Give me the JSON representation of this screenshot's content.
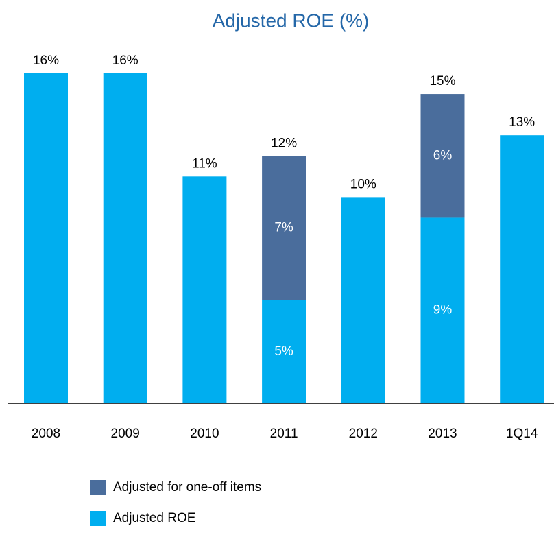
{
  "chart_data": {
    "type": "stacked-bar",
    "title": "Adjusted ROE (%)",
    "categories": [
      "2008",
      "2009",
      "2010",
      "2011",
      "2012",
      "2013",
      "1Q14"
    ],
    "series": [
      {
        "name": "Adjusted ROE",
        "color": "#00aeef",
        "values": [
          16,
          16,
          11,
          5,
          10,
          9,
          13
        ],
        "value_labels": [
          "16%",
          "16%",
          "11%",
          "5%",
          "10%",
          "9%",
          "13%"
        ]
      },
      {
        "name": "Adjusted for one-off items",
        "color": "#4a6d9c",
        "values": [
          null,
          null,
          null,
          7,
          null,
          6,
          null
        ],
        "value_labels": [
          null,
          null,
          null,
          "7%",
          null,
          "6%",
          null
        ]
      }
    ],
    "total_labels": [
      null,
      null,
      null,
      "12%",
      null,
      "15%",
      null
    ]
  }
}
